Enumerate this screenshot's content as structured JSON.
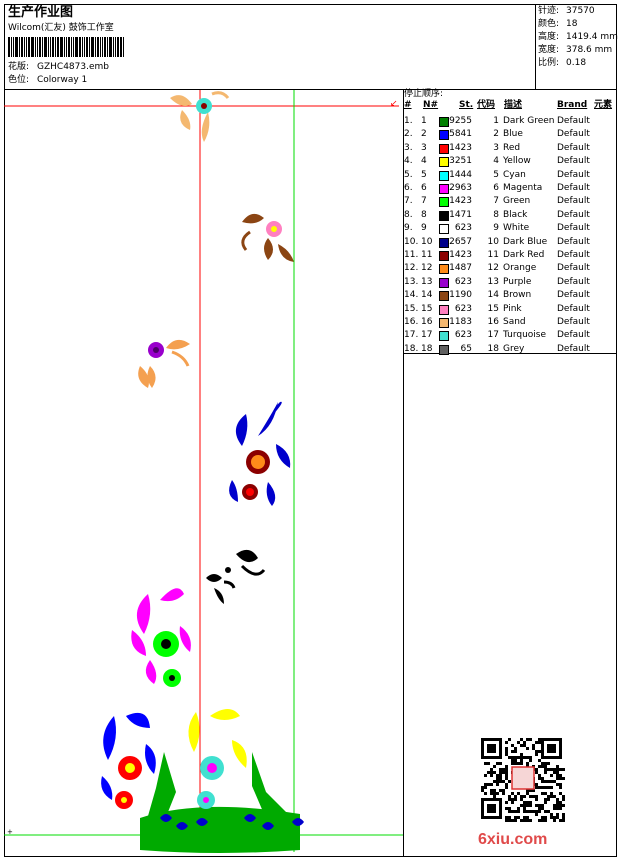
{
  "header": {
    "title": "生产作业图",
    "company": "Wilcom(汇友) 鼓饰工作室",
    "design_label": "花版:",
    "design_value": "GZHC4873.emb",
    "colorway_label": "色位:",
    "colorway_value": "Colorway 1"
  },
  "stats": {
    "stitches_label": "针迹:",
    "stitches_value": "37570",
    "colors_label": "颜色:",
    "colors_value": "18",
    "height_label": "高度:",
    "height_value": "1419.4 mm",
    "width_label": "宽度:",
    "width_value": "378.6 mm",
    "scale_label": "比例:",
    "scale_value": "0.18"
  },
  "stop_sequence": {
    "title": "停止顺序:",
    "headers": [
      "#",
      "N#",
      "St.",
      "代码",
      "描述",
      "Brand",
      "元素"
    ],
    "rows": [
      {
        "idx": "1.",
        "n": "1",
        "st": "9255",
        "code": "1",
        "desc": "Dark Green",
        "brand": "Default",
        "color": "#008000"
      },
      {
        "idx": "2.",
        "n": "2",
        "st": "5841",
        "code": "2",
        "desc": "Blue",
        "brand": "Default",
        "color": "#0000ff"
      },
      {
        "idx": "3.",
        "n": "3",
        "st": "1423",
        "code": "3",
        "desc": "Red",
        "brand": "Default",
        "color": "#ff0000"
      },
      {
        "idx": "4.",
        "n": "4",
        "st": "3251",
        "code": "4",
        "desc": "Yellow",
        "brand": "Default",
        "color": "#ffff00"
      },
      {
        "idx": "5.",
        "n": "5",
        "st": "1444",
        "code": "5",
        "desc": "Cyan",
        "brand": "Default",
        "color": "#00ffff"
      },
      {
        "idx": "6.",
        "n": "6",
        "st": "2963",
        "code": "6",
        "desc": "Magenta",
        "brand": "Default",
        "color": "#ff00ff"
      },
      {
        "idx": "7.",
        "n": "7",
        "st": "1423",
        "code": "7",
        "desc": "Green",
        "brand": "Default",
        "color": "#00ff00"
      },
      {
        "idx": "8.",
        "n": "8",
        "st": "1471",
        "code": "8",
        "desc": "Black",
        "brand": "Default",
        "color": "#000000"
      },
      {
        "idx": "9.",
        "n": "9",
        "st": "623",
        "code": "9",
        "desc": "White",
        "brand": "Default",
        "color": "#ffffff"
      },
      {
        "idx": "10.",
        "n": "10",
        "st": "2657",
        "code": "10",
        "desc": "Dark Blue",
        "brand": "Default",
        "color": "#00008b"
      },
      {
        "idx": "11.",
        "n": "11",
        "st": "1423",
        "code": "11",
        "desc": "Dark Red",
        "brand": "Default",
        "color": "#8b0000"
      },
      {
        "idx": "12.",
        "n": "12",
        "st": "1487",
        "code": "12",
        "desc": "Orange",
        "brand": "Default",
        "color": "#ff8c1a"
      },
      {
        "idx": "13.",
        "n": "13",
        "st": "623",
        "code": "13",
        "desc": "Purple",
        "brand": "Default",
        "color": "#9900cc"
      },
      {
        "idx": "14.",
        "n": "14",
        "st": "1190",
        "code": "14",
        "desc": "Brown",
        "brand": "Default",
        "color": "#8b4513"
      },
      {
        "idx": "15.",
        "n": "15",
        "st": "623",
        "code": "15",
        "desc": "Pink",
        "brand": "Default",
        "color": "#ff80c0"
      },
      {
        "idx": "16.",
        "n": "16",
        "st": "1183",
        "code": "16",
        "desc": "Sand",
        "brand": "Default",
        "color": "#f4b870"
      },
      {
        "idx": "17.",
        "n": "17",
        "st": "623",
        "code": "17",
        "desc": "Turquoise",
        "brand": "Default",
        "color": "#40e0d0"
      },
      {
        "idx": "18.",
        "n": "18",
        "st": "65",
        "code": "18",
        "desc": "Grey",
        "brand": "Default",
        "color": "#606060"
      }
    ]
  },
  "watermark": {
    "text": "6xiu.com"
  }
}
